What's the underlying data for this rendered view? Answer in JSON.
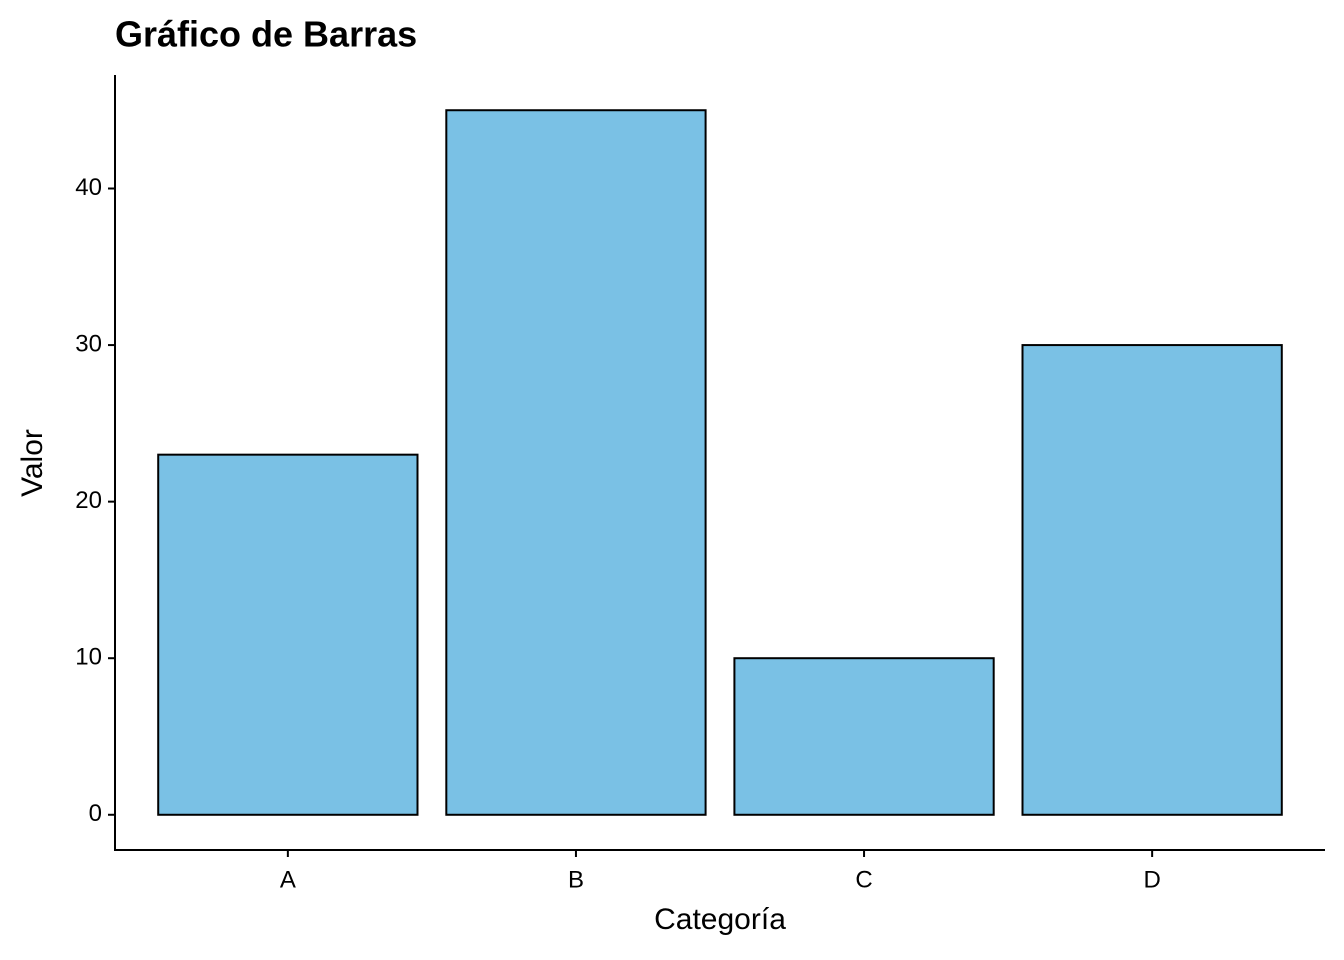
{
  "chart_data": {
    "type": "bar",
    "title": "Gráfico de Barras",
    "x_label": "Categoría",
    "y_label": "Valor",
    "categories": [
      "A",
      "B",
      "C",
      "D"
    ],
    "values": [
      23,
      45,
      10,
      30
    ],
    "color": "#7ac1e5",
    "edge_color": "#000000",
    "ylim": [
      -2.25,
      47.25
    ],
    "yticks": [
      0,
      10,
      20,
      30,
      40
    ],
    "grid": false
  }
}
